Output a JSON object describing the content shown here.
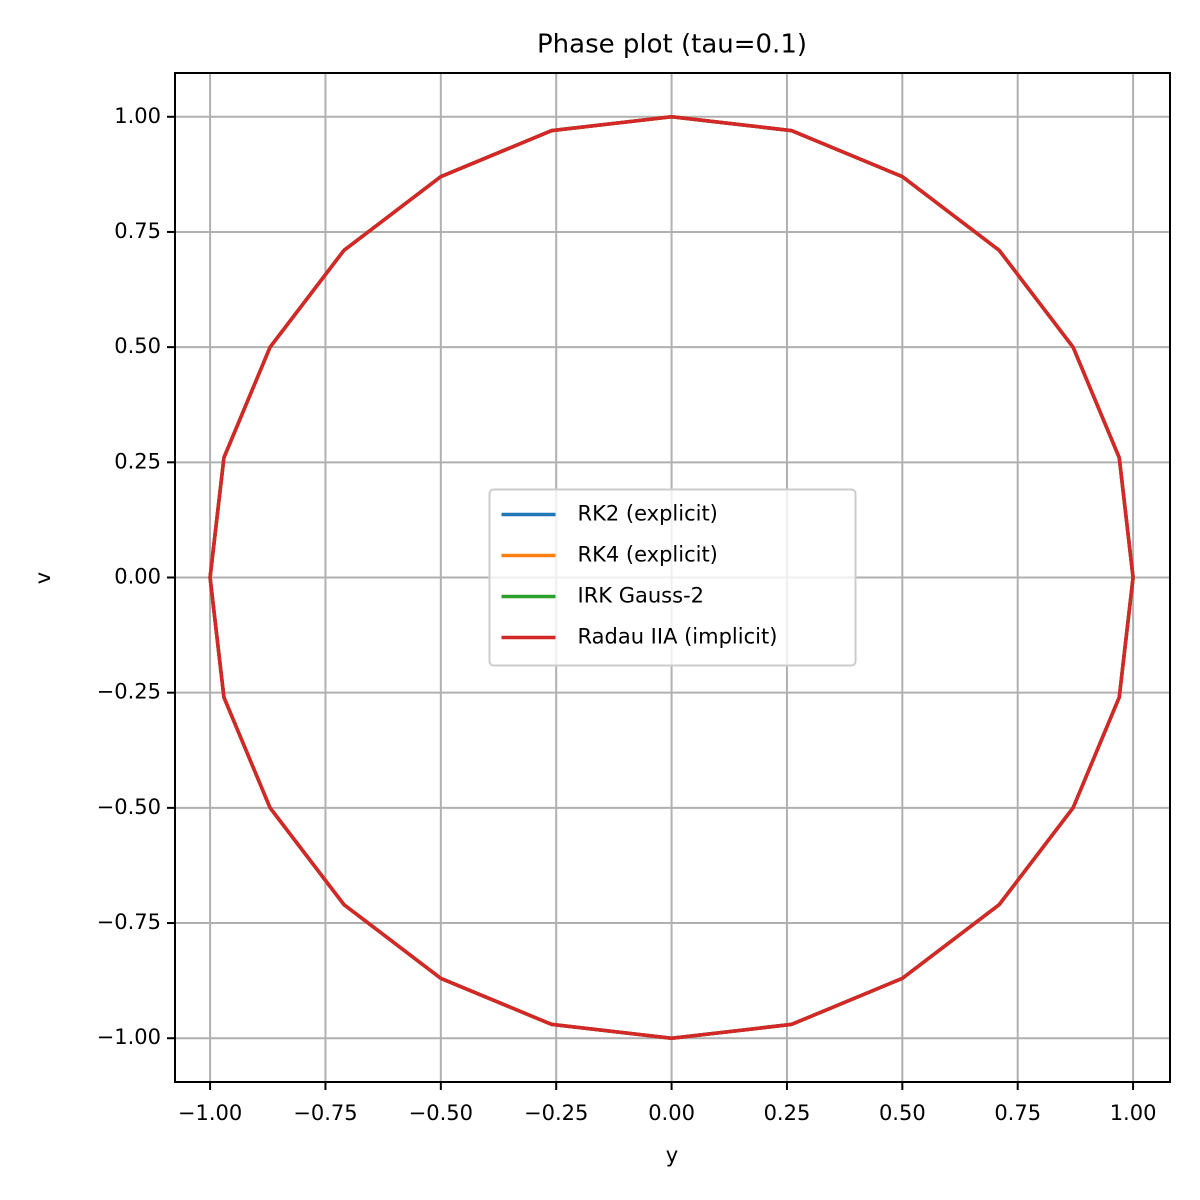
{
  "chart_data": {
    "type": "line",
    "title": "Phase plot (tau=0.1)",
    "x_label": "y",
    "y_label": "v",
    "xlim": [
      -1.076,
      1.08
    ],
    "ylim": [
      -1.095,
      1.095
    ],
    "xticks": [
      {
        "value": -1,
        "label": "−1.00"
      },
      {
        "value": -0.75,
        "label": "−0.75"
      },
      {
        "value": -0.5,
        "label": "−0.50"
      },
      {
        "value": -0.25,
        "label": "−0.25"
      },
      {
        "value": 0,
        "label": "0.00"
      },
      {
        "value": 0.25,
        "label": "0.25"
      },
      {
        "value": 0.5,
        "label": "0.50"
      },
      {
        "value": 0.75,
        "label": "0.75"
      },
      {
        "value": 1,
        "label": "1.00"
      }
    ],
    "yticks": [
      {
        "value": -1,
        "label": "−1.00"
      },
      {
        "value": -0.75,
        "label": "−0.75"
      },
      {
        "value": -0.5,
        "label": "−0.50"
      },
      {
        "value": -0.25,
        "label": "−0.25"
      },
      {
        "value": 0,
        "label": "0.00"
      },
      {
        "value": 0.25,
        "label": "0.25"
      },
      {
        "value": 0.5,
        "label": "0.50"
      },
      {
        "value": 0.75,
        "label": "0.75"
      },
      {
        "value": 1,
        "label": "1.00"
      }
    ],
    "grid": true,
    "legend": "center",
    "series": [
      {
        "name": "RK2 (explicit)",
        "color": "#1f77b4",
        "x": [
          1,
          0.97,
          0.87,
          0.71,
          0.5,
          0.26,
          0,
          -0.26,
          -0.5,
          -0.71,
          -0.87,
          -0.97,
          -1,
          -0.97,
          -0.87,
          -0.71,
          -0.5,
          -0.26,
          0,
          0.26,
          0.5,
          0.71,
          0.87,
          0.97,
          1
        ],
        "values": [
          0,
          0.26,
          0.5,
          0.71,
          0.87,
          0.97,
          1,
          0.97,
          0.87,
          0.71,
          0.5,
          0.26,
          0,
          -0.26,
          -0.5,
          -0.71,
          -0.87,
          -0.97,
          -1,
          -0.97,
          -0.87,
          -0.71,
          -0.5,
          -0.26,
          0
        ]
      },
      {
        "name": "RK4 (explicit)",
        "color": "#ff7f0e",
        "x": [
          1,
          0.97,
          0.87,
          0.71,
          0.5,
          0.26,
          0,
          -0.26,
          -0.5,
          -0.71,
          -0.87,
          -0.97,
          -1,
          -0.97,
          -0.87,
          -0.71,
          -0.5,
          -0.26,
          0,
          0.26,
          0.5,
          0.71,
          0.87,
          0.97,
          1
        ],
        "values": [
          0,
          0.26,
          0.5,
          0.71,
          0.87,
          0.97,
          1,
          0.97,
          0.87,
          0.71,
          0.5,
          0.26,
          0,
          -0.26,
          -0.5,
          -0.71,
          -0.87,
          -0.97,
          -1,
          -0.97,
          -0.87,
          -0.71,
          -0.5,
          -0.26,
          0
        ]
      },
      {
        "name": "IRK Gauss-2",
        "color": "#2ca02c",
        "x": [
          1,
          0.97,
          0.87,
          0.71,
          0.5,
          0.26,
          0,
          -0.26,
          -0.5,
          -0.71,
          -0.87,
          -0.97,
          -1,
          -0.97,
          -0.87,
          -0.71,
          -0.5,
          -0.26,
          0,
          0.26,
          0.5,
          0.71,
          0.87,
          0.97,
          1
        ],
        "values": [
          0,
          0.26,
          0.5,
          0.71,
          0.87,
          0.97,
          1,
          0.97,
          0.87,
          0.71,
          0.5,
          0.26,
          0,
          -0.26,
          -0.5,
          -0.71,
          -0.87,
          -0.97,
          -1,
          -0.97,
          -0.87,
          -0.71,
          -0.5,
          -0.26,
          0
        ]
      },
      {
        "name": "Radau IIA (implicit)",
        "color": "#d62728",
        "x": [
          1,
          0.97,
          0.87,
          0.71,
          0.5,
          0.26,
          0,
          -0.26,
          -0.5,
          -0.71,
          -0.87,
          -0.97,
          -1,
          -0.97,
          -0.87,
          -0.71,
          -0.5,
          -0.26,
          0,
          0.26,
          0.5,
          0.71,
          0.87,
          0.97,
          1
        ],
        "values": [
          0,
          0.26,
          0.5,
          0.71,
          0.87,
          0.97,
          1,
          0.97,
          0.87,
          0.71,
          0.5,
          0.26,
          0,
          -0.26,
          -0.5,
          -0.71,
          -0.87,
          -0.97,
          -1,
          -0.97,
          -0.87,
          -0.71,
          -0.5,
          -0.26,
          0
        ]
      }
    ]
  }
}
